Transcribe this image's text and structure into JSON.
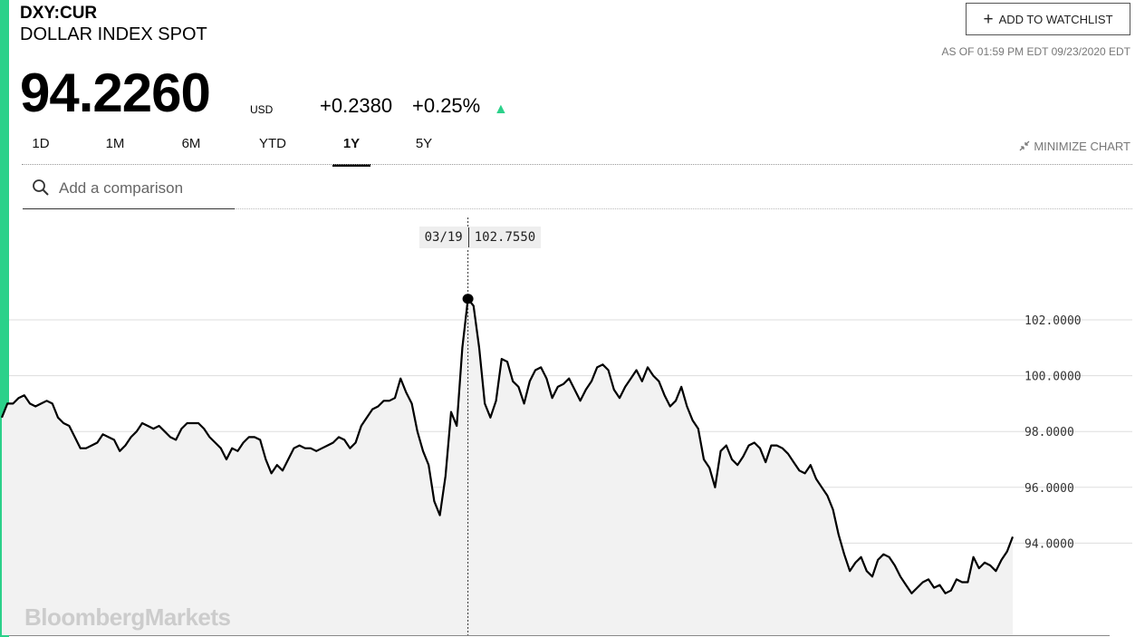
{
  "header": {
    "ticker": "DXY:CUR",
    "name": "DOLLAR INDEX SPOT",
    "watchlist_label": "ADD TO WATCHLIST",
    "as_of": "AS OF 01:59 PM EDT 09/23/2020 EDT"
  },
  "quote": {
    "price": "94.2260",
    "currency": "USD",
    "change": "+0.2380",
    "change_pct": "+0.25%",
    "arrow": "▲"
  },
  "tabs": [
    {
      "label": "1D"
    },
    {
      "label": "1M"
    },
    {
      "label": "6M"
    },
    {
      "label": "YTD"
    },
    {
      "label": "1Y",
      "active": true
    },
    {
      "label": "5Y"
    }
  ],
  "minimize_label": "MINIMIZE CHART",
  "search": {
    "placeholder": "Add a comparison"
  },
  "colors": {
    "accent": "#2bd18a",
    "up": "#2bd18a",
    "line": "#000000",
    "fill": "#f2f2f2",
    "grid": "#dddddd"
  },
  "watermark": "BloombergMarkets",
  "chart_data": {
    "type": "area",
    "series": [
      {
        "values": [
          98.5,
          99.0,
          99.0,
          99.2,
          99.3,
          99.0,
          98.9,
          99.0,
          99.1,
          99.0,
          98.5,
          98.3,
          98.2,
          97.8,
          97.4,
          97.4,
          97.5,
          97.6,
          97.9,
          97.8,
          97.7,
          97.3,
          97.5,
          97.8,
          98.0,
          98.3,
          98.2,
          98.1,
          98.2,
          98.0,
          97.8,
          97.7,
          98.1,
          98.3,
          98.3,
          98.3,
          98.1,
          97.8,
          97.6,
          97.4,
          97.0,
          97.4,
          97.3,
          97.6,
          97.8,
          97.8,
          97.7,
          97.0,
          96.5,
          96.8,
          96.6,
          97.0,
          97.4,
          97.5,
          97.4,
          97.4,
          97.3,
          97.4,
          97.5,
          97.6,
          97.8,
          97.7,
          97.4,
          97.6,
          98.2,
          98.5,
          98.8,
          98.9,
          99.1,
          99.1,
          99.2,
          99.9,
          99.4,
          99.0,
          98.0,
          97.3,
          96.8,
          95.5,
          95.0,
          96.4,
          98.7,
          98.2,
          101.0,
          102.755,
          102.5,
          101.0,
          99.0,
          98.5,
          99.1,
          100.6,
          100.5,
          99.8,
          99.6,
          99.0,
          99.8,
          100.2,
          100.3,
          99.9,
          99.2,
          99.6,
          99.7,
          99.9,
          99.5,
          99.1,
          99.5,
          99.8,
          100.3,
          100.4,
          100.2,
          99.5,
          99.2,
          99.6,
          99.9,
          100.2,
          99.8,
          100.3,
          100.0,
          99.8,
          99.3,
          98.9,
          99.1,
          99.6,
          98.9,
          98.4,
          98.1,
          97.0,
          96.7,
          96.0,
          97.3,
          97.5,
          97.0,
          96.8,
          97.1,
          97.5,
          97.6,
          97.4,
          96.9,
          97.5,
          97.5,
          97.4,
          97.2,
          96.9,
          96.6,
          96.5,
          96.8,
          96.3,
          96.0,
          95.7,
          95.2,
          94.3,
          93.6,
          93.0,
          93.3,
          93.5,
          93.0,
          92.8,
          93.4,
          93.6,
          93.5,
          93.2,
          92.8,
          92.5,
          92.2,
          92.4,
          92.6,
          92.7,
          92.4,
          92.5,
          92.2,
          92.3,
          92.7,
          92.6,
          92.6,
          93.5,
          93.1,
          93.3,
          93.2,
          93.0,
          93.4,
          93.7,
          94.226
        ]
      }
    ],
    "x_range": [
      "09/2019",
      "09/23/2020"
    ],
    "ylim": [
      90.7,
      105.8
    ],
    "yticks": [
      "102.0000",
      "100.0000",
      "98.0000",
      "96.0000",
      "94.0000"
    ],
    "ytick_values": [
      102,
      100,
      98,
      96,
      94
    ],
    "grid": true,
    "annotation": {
      "date": "03/19",
      "value": "102.7550",
      "index": 83
    }
  }
}
